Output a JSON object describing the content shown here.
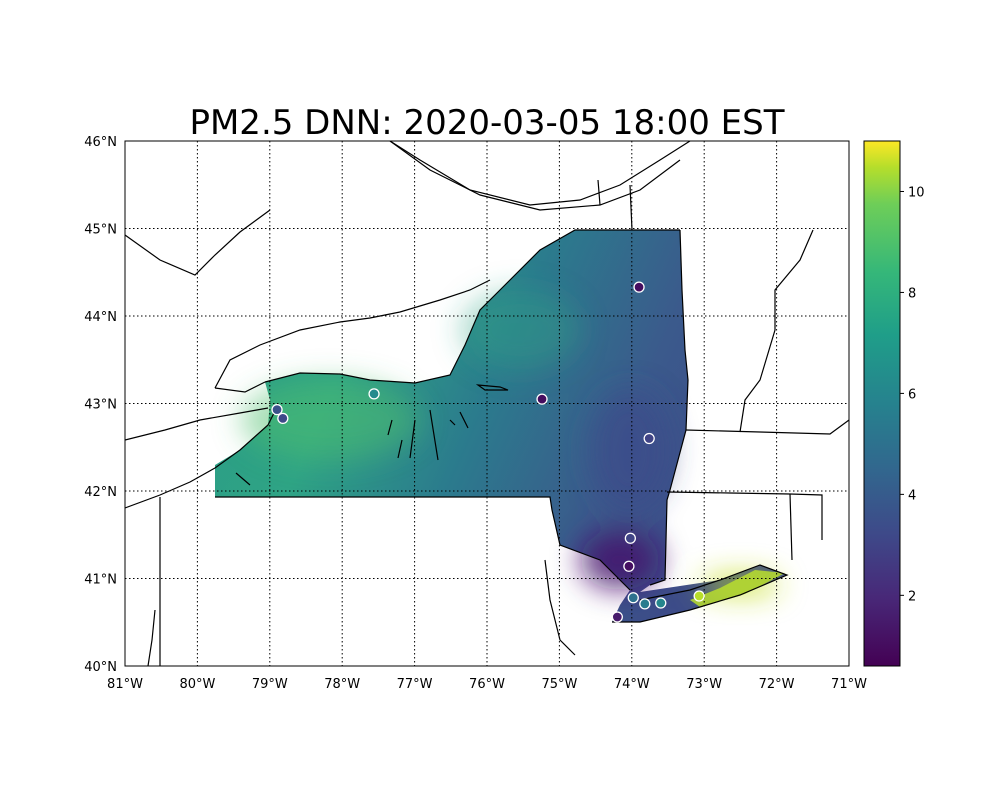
{
  "title": "PM2.5 DNN: 2020-03-05 18:00 EST",
  "map": {
    "extent": {
      "lon": [
        -81,
        -71
      ],
      "lat": [
        40,
        46
      ]
    },
    "region": "New York State",
    "x_ticks": [
      "81°W",
      "80°W",
      "79°W",
      "78°W",
      "77°W",
      "76°W",
      "75°W",
      "74°W",
      "73°W",
      "72°W",
      "71°W"
    ],
    "y_ticks": [
      "40°N",
      "41°N",
      "42°N",
      "43°N",
      "44°N",
      "45°N",
      "46°N"
    ],
    "gridlines": "dotted",
    "colormap": "viridis",
    "colors": {
      "low": "#440154",
      "mid": "#21918c",
      "high": "#fde725"
    }
  },
  "colorbar": {
    "range": [
      0.6,
      11.0
    ],
    "ticks": [
      "2",
      "4",
      "6",
      "8",
      "10"
    ],
    "tick_values": [
      2,
      4,
      6,
      8,
      10
    ]
  },
  "stations": [
    {
      "lon": -73.9,
      "lat": 44.33,
      "value": 1.0
    },
    {
      "lon": -77.56,
      "lat": 43.11,
      "value": 6.2
    },
    {
      "lon": -78.82,
      "lat": 42.83,
      "value": 3.2
    },
    {
      "lon": -78.9,
      "lat": 42.93,
      "value": 3.6
    },
    {
      "lon": -75.24,
      "lat": 43.05,
      "value": 1.0
    },
    {
      "lon": -73.76,
      "lat": 42.6,
      "value": 3.0
    },
    {
      "lon": -74.02,
      "lat": 41.46,
      "value": 3.0
    },
    {
      "lon": -74.04,
      "lat": 41.14,
      "value": 1.1
    },
    {
      "lon": -73.07,
      "lat": 40.8,
      "value": 10.5
    },
    {
      "lon": -73.6,
      "lat": 40.72,
      "value": 6.0
    },
    {
      "lon": -73.82,
      "lat": 40.71,
      "value": 5.5
    },
    {
      "lon": -73.98,
      "lat": 40.78,
      "value": 5.0
    },
    {
      "lon": -74.2,
      "lat": 40.56,
      "value": 1.5
    }
  ]
}
